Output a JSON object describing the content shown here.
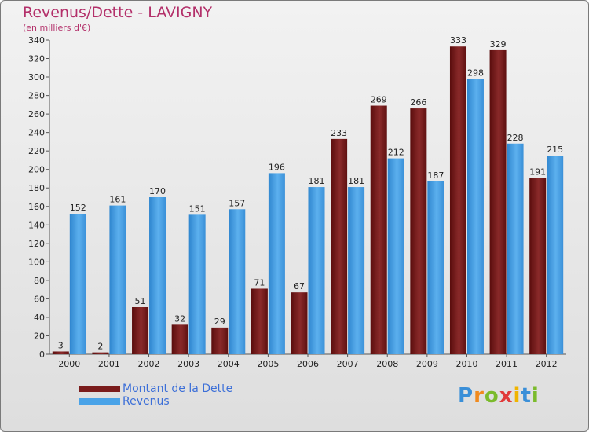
{
  "title": "Revenus/Dette - LAVIGNY",
  "subtitle": "(en milliers d'€)",
  "logo": {
    "letters": [
      "P",
      "r",
      "o",
      "x",
      "i",
      "t",
      "i"
    ],
    "colors": [
      "#3a8fd8",
      "#f08a1e",
      "#7bbb2c",
      "#e13a3a",
      "#f0b400",
      "#3a8fd8",
      "#7bbb2c"
    ]
  },
  "legend": [
    {
      "label": "Montant de la Dette",
      "color": "#7a1c1c"
    },
    {
      "label": "Revenus",
      "color": "#4aa3e8"
    }
  ],
  "chart_data": {
    "type": "bar",
    "title": "Revenus/Dette - LAVIGNY",
    "subtitle": "(en milliers d'€)",
    "xlabel": "",
    "ylabel": "",
    "ylim": [
      0,
      340
    ],
    "yticks": [
      0,
      20,
      40,
      60,
      80,
      100,
      120,
      140,
      160,
      180,
      200,
      220,
      240,
      260,
      280,
      300,
      320,
      340
    ],
    "grid": false,
    "categories": [
      "2000",
      "2001",
      "2002",
      "2003",
      "2004",
      "2005",
      "2006",
      "2007",
      "2008",
      "2009",
      "2010",
      "2011",
      "2012"
    ],
    "series": [
      {
        "name": "Montant de la Dette",
        "color": "#7a1c1c",
        "values": [
          3,
          2,
          51,
          32,
          29,
          71,
          67,
          233,
          269,
          266,
          333,
          329,
          191
        ]
      },
      {
        "name": "Revenus",
        "color": "#4aa3e8",
        "values": [
          152,
          161,
          170,
          151,
          157,
          196,
          181,
          181,
          212,
          187,
          298,
          228,
          215
        ]
      }
    ]
  }
}
